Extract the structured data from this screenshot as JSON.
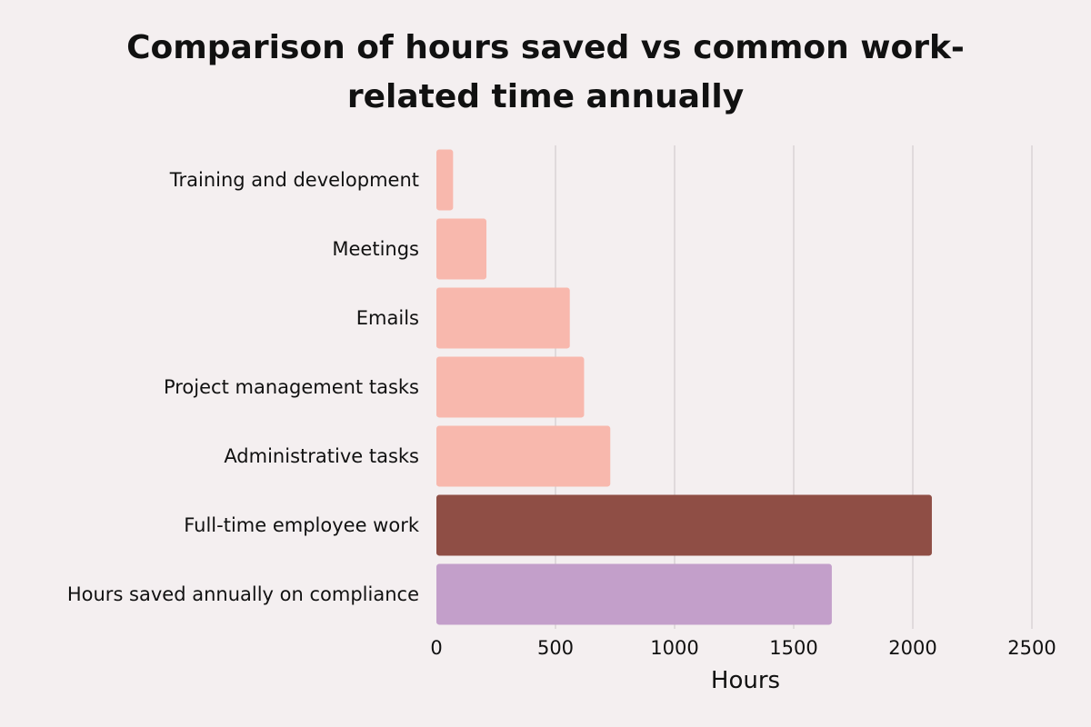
{
  "chart_data": {
    "type": "bar",
    "orientation": "horizontal",
    "title_lines": [
      "Comparison of hours saved vs common work-",
      "related time annually"
    ],
    "xlabel": "Hours",
    "ylabel": "",
    "categories": [
      "Training and development",
      "Meetings",
      "Emails",
      "Project management tasks",
      "Administrative tasks",
      "Full-time employee work",
      "Hours saved annually on compliance"
    ],
    "values": [
      70,
      210,
      560,
      620,
      730,
      2080,
      1660
    ],
    "bar_colors": [
      "#f8b8ad",
      "#f8b8ad",
      "#f8b8ad",
      "#f8b8ad",
      "#f8b8ad",
      "#8f4e45",
      "#c39fca"
    ],
    "xlim": [
      0,
      2500
    ],
    "xticks": [
      0,
      500,
      1000,
      1500,
      2000,
      2500
    ],
    "grid": true,
    "gridline_color": "#d9d4d5",
    "background": "#f4eff0"
  }
}
